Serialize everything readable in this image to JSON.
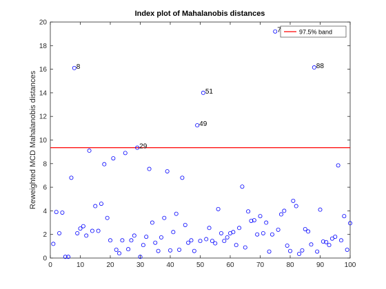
{
  "chart_data": {
    "type": "scatter",
    "title": "Index plot of Mahalanobis distances",
    "xlabel": "",
    "ylabel": "Reweighted MCD Mahalanobis distances",
    "xlim": [
      0,
      100
    ],
    "ylim": [
      0,
      20
    ],
    "xticks": [
      0,
      10,
      20,
      30,
      40,
      50,
      60,
      70,
      80,
      90,
      100
    ],
    "yticks": [
      0,
      2,
      4,
      6,
      8,
      10,
      12,
      14,
      16,
      18,
      20
    ],
    "grid": false,
    "legend_position": "top-right",
    "colors": {
      "marker": "#0000ff",
      "band": "#ff0000",
      "axis": "#262626"
    },
    "band": {
      "name": "97.5% band",
      "y": 9.35
    },
    "series": [
      {
        "marker": "open-circle",
        "x": [
          1,
          2,
          3,
          4,
          5,
          6,
          7,
          8,
          9,
          10,
          11,
          12,
          13,
          14,
          15,
          16,
          17,
          18,
          19,
          20,
          21,
          22,
          23,
          24,
          25,
          26,
          27,
          28,
          29,
          30,
          31,
          32,
          33,
          34,
          35,
          36,
          37,
          38,
          39,
          40,
          41,
          42,
          43,
          44,
          45,
          46,
          47,
          48,
          49,
          50,
          51,
          52,
          53,
          54,
          55,
          56,
          57,
          58,
          59,
          60,
          61,
          62,
          63,
          64,
          65,
          66,
          67,
          68,
          69,
          70,
          71,
          72,
          73,
          74,
          75,
          76,
          77,
          78,
          79,
          80,
          81,
          82,
          83,
          84,
          85,
          86,
          87,
          88,
          89,
          90,
          91,
          92,
          93,
          94,
          95,
          96,
          97,
          98,
          99,
          100
        ],
        "y": [
          1.2,
          3.9,
          2.1,
          3.85,
          0.1,
          0.1,
          6.8,
          16.1,
          2.1,
          2.5,
          2.7,
          1.9,
          9.1,
          2.3,
          4.4,
          2.3,
          4.6,
          7.95,
          3.4,
          1.5,
          8.45,
          0.7,
          0.4,
          1.5,
          8.9,
          0.75,
          1.5,
          1.9,
          9.35,
          0.1,
          1.1,
          1.8,
          7.55,
          3.0,
          1.3,
          0.6,
          1.75,
          3.4,
          7.35,
          0.65,
          2.2,
          3.75,
          0.7,
          6.8,
          2.8,
          1.3,
          1.5,
          0.6,
          11.25,
          1.45,
          14.0,
          1.6,
          2.55,
          1.45,
          1.25,
          4.15,
          2.1,
          1.45,
          1.75,
          2.1,
          2.2,
          1.1,
          2.55,
          6.05,
          0.9,
          3.95,
          3.15,
          3.2,
          2.0,
          3.55,
          2.1,
          3.0,
          0.55,
          2.0,
          19.2,
          2.4,
          3.7,
          4.0,
          1.05,
          0.6,
          4.85,
          4.4,
          0.35,
          0.65,
          2.45,
          2.25,
          1.15,
          16.15,
          0.55,
          4.1,
          1.4,
          1.35,
          1.1,
          1.65,
          1.8,
          7.85,
          1.5,
          3.55,
          0.7,
          2.95
        ]
      }
    ],
    "annotations": [
      {
        "text": "8",
        "x": 8,
        "y": 16.1
      },
      {
        "text": "75",
        "x": 75,
        "y": 19.2
      },
      {
        "text": "88",
        "x": 88,
        "y": 16.15
      },
      {
        "text": "51",
        "x": 51,
        "y": 14.0
      },
      {
        "text": "49",
        "x": 49,
        "y": 11.25
      },
      {
        "text": "29",
        "x": 29,
        "y": 9.35
      }
    ]
  }
}
